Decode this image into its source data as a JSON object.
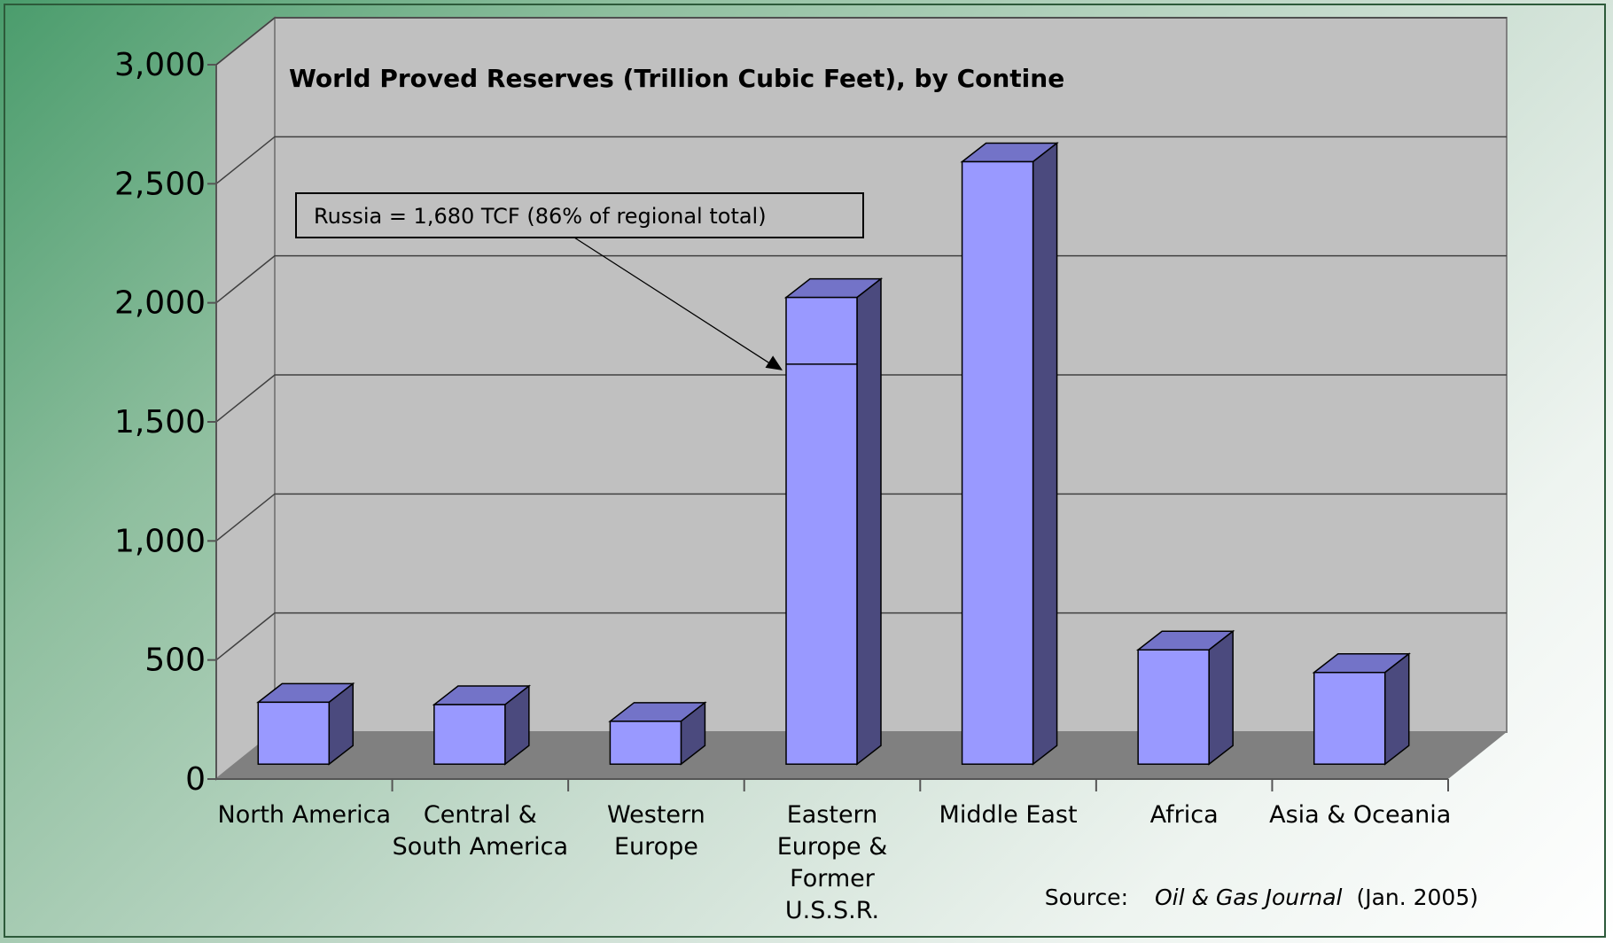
{
  "chart_data": {
    "type": "bar",
    "title": "World Proved Reserves (Trillion Cubic Feet), by Contine",
    "xlabel": "",
    "ylabel": "",
    "ylim": [
      0,
      3000
    ],
    "yticks": [
      "0",
      "500",
      "1,000",
      "1,500",
      "2,000",
      "2,500",
      "3,000"
    ],
    "grid": true,
    "three_d": true,
    "categories": [
      {
        "label": [
          "North America"
        ],
        "value": 260
      },
      {
        "label": [
          "Central &",
          "South America"
        ],
        "value": 250
      },
      {
        "label": [
          "Western",
          "Europe"
        ],
        "value": 180
      },
      {
        "label": [
          "Eastern",
          "Europe &",
          "Former",
          "U.S.S.R."
        ],
        "value": 1960,
        "segment_value": 1680
      },
      {
        "label": [
          "Middle East"
        ],
        "value": 2530
      },
      {
        "label": [
          "Africa"
        ],
        "value": 480
      },
      {
        "label": [
          "Asia & Oceania"
        ],
        "value": 385
      }
    ],
    "annotation": {
      "text": "Russia = 1,680 TCF (86% of regional  total)",
      "target_category": 3,
      "target_value": 1680
    },
    "source": {
      "prefix": "Source:",
      "publication": "Oil & Gas Journal",
      "suffix": "(Jan. 2005)"
    }
  },
  "colors": {
    "bar_front": "#9999ff",
    "bar_top": "#7373c8",
    "bar_side": "#4b4a7e",
    "wall": "#c0c0c0",
    "floor": "#808080",
    "gridline": "#404040"
  }
}
